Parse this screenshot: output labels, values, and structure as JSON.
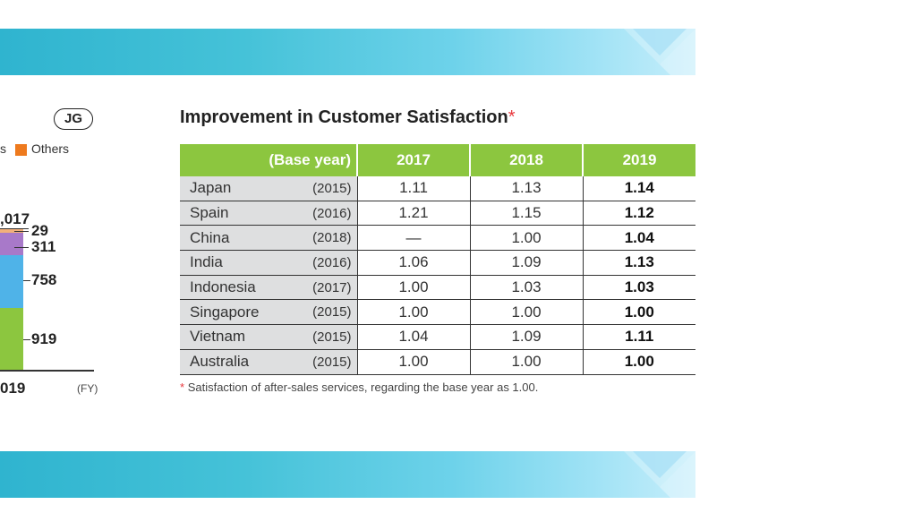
{
  "left_chart": {
    "badge": "JG",
    "legend_fragment": "s",
    "legend_others": "Others",
    "legend_others_color": "#ee7a1e",
    "total_label": ",017",
    "values": [
      {
        "label": "29",
        "color": "#f2b07a"
      },
      {
        "label": "311",
        "color": "#a879c9"
      },
      {
        "label": "758",
        "color": "#4fb3e8"
      },
      {
        "label": "919",
        "color": "#8cc63f"
      }
    ],
    "year_label": "019",
    "unit": "(FY)"
  },
  "table": {
    "title": "Improvement in Customer Satisfaction",
    "title_asterisk": "*",
    "header": {
      "base": "(Base year)",
      "y1": "2017",
      "y2": "2018",
      "y3": "2019"
    },
    "rows": [
      {
        "country": "Japan",
        "base": "(2015)",
        "y1": "1.11",
        "y2": "1.13",
        "y3": "1.14"
      },
      {
        "country": "Spain",
        "base": "(2016)",
        "y1": "1.21",
        "y2": "1.15",
        "y3": "1.12"
      },
      {
        "country": "China",
        "base": "(2018)",
        "y1": "—",
        "y2": "1.00",
        "y3": "1.04"
      },
      {
        "country": "India",
        "base": "(2016)",
        "y1": "1.06",
        "y2": "1.09",
        "y3": "1.13"
      },
      {
        "country": "Indonesia",
        "base": "(2017)",
        "y1": "1.00",
        "y2": "1.03",
        "y3": "1.03"
      },
      {
        "country": "Singapore",
        "base": "(2015)",
        "y1": "1.00",
        "y2": "1.00",
        "y3": "1.00"
      },
      {
        "country": "Vietnam",
        "base": "(2015)",
        "y1": "1.04",
        "y2": "1.09",
        "y3": "1.11"
      },
      {
        "country": "Australia",
        "base": "(2015)",
        "y1": "1.00",
        "y2": "1.00",
        "y3": "1.00"
      }
    ],
    "footnote_asterisk": "*",
    "footnote": "Satisfaction of after-sales services, regarding the base year as 1.00."
  }
}
